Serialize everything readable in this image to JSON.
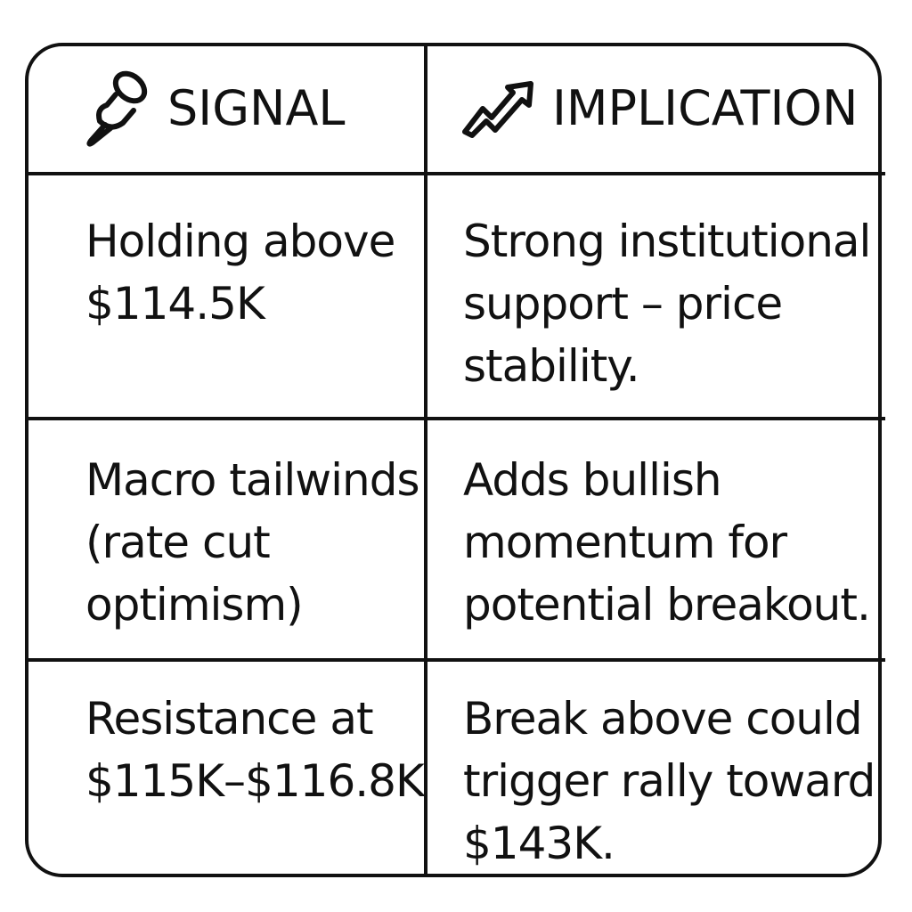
{
  "headers": [
    {
      "label": "SIGNAL",
      "icon": "pushpin-icon"
    },
    {
      "label": "IMPLICATION",
      "icon": "trending-up-arrow-icon"
    }
  ],
  "rows": [
    {
      "signal": [
        "Holding above",
        "$114.5K"
      ],
      "implication": [
        "Strong institutional",
        "support – price",
        "stability."
      ]
    },
    {
      "signal": [
        "Macro tailwinds",
        "(rate cut",
        "optimism)"
      ],
      "implication": [
        "Adds bullish",
        "momentum for",
        "potential breakout."
      ]
    },
    {
      "signal": [
        "Resistance at",
        "$115K–$116.8K"
      ],
      "implication": [
        "Break above could",
        "trigger rally toward",
        "$143K."
      ]
    }
  ]
}
